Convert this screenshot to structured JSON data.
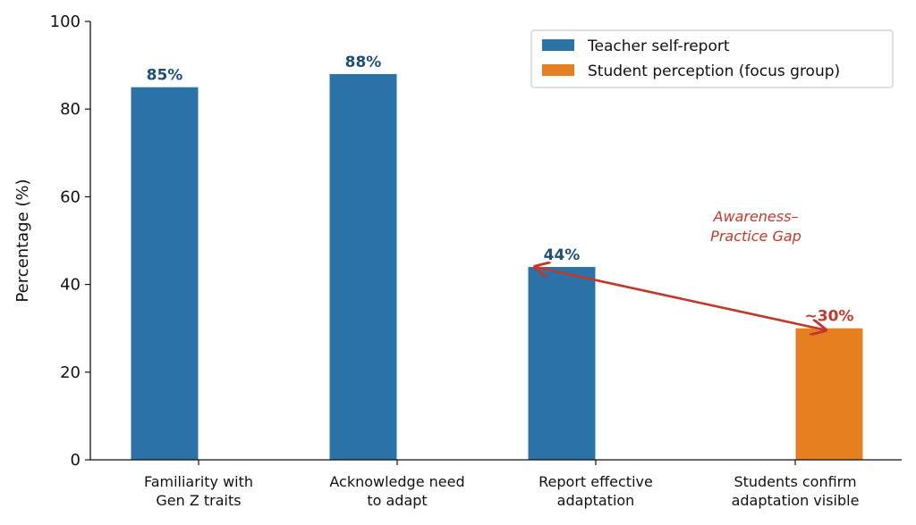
{
  "chart_data": {
    "type": "bar",
    "categories": [
      [
        "Familiarity with",
        "Gen Z traits"
      ],
      [
        "Acknowledge need",
        "to adapt"
      ],
      [
        "Report effective",
        "adaptation"
      ],
      [
        "Students confirm",
        "adaptation visible"
      ]
    ],
    "series": [
      {
        "name": "Teacher self-report",
        "color": "#2b72a6",
        "label_color": "#1f4e79",
        "values": [
          85,
          88,
          44,
          null
        ],
        "labels": [
          "85%",
          "88%",
          "44%",
          ""
        ]
      },
      {
        "name": "Student perception (focus group)",
        "color": "#e67e22",
        "label_color": "#c0392b",
        "values": [
          null,
          null,
          null,
          30
        ],
        "labels": [
          "",
          "",
          "",
          "~30%"
        ]
      }
    ],
    "ylabel": "Percentage (%)",
    "xlabel": "",
    "title": "",
    "ylim": [
      0,
      100
    ],
    "yticks": [
      0,
      20,
      40,
      60,
      80,
      100
    ],
    "grid": false,
    "legend_position": "top-right",
    "annotation": {
      "text_lines": [
        "Awareness–",
        "Practice Gap"
      ],
      "color": "#c0392b",
      "arrow_from": {
        "category": 2,
        "value": 44
      },
      "arrow_to": {
        "category": 3,
        "value": 30
      }
    }
  }
}
